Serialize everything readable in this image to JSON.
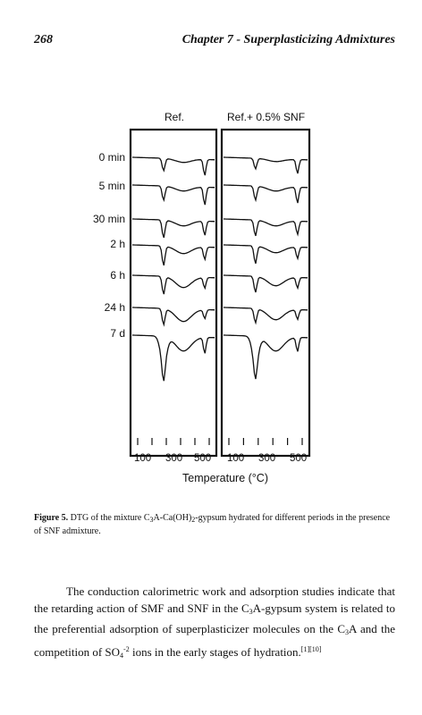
{
  "running_head": {
    "page_number": "268",
    "chapter_title": "Chapter 7 - Superplasticizing Admixtures"
  },
  "figure": {
    "panels": [
      {
        "label": "Ref."
      },
      {
        "label": "Ref.+ 0.5% SNF"
      }
    ],
    "row_labels": [
      "0 min",
      "5 min",
      "30 min",
      "2 h",
      "6 h",
      "24 h",
      "7 d"
    ],
    "x_tick_labels_left": [
      "100",
      "300",
      "500"
    ],
    "x_tick_labels_right": [
      "100",
      "300",
      "500"
    ],
    "x_axis_title": "Temperature (°C)"
  },
  "caption": {
    "label": "Figure 5.",
    "text_1": " DTG of the mixture C",
    "sub_1": "3",
    "text_2": "A-Ca(OH)",
    "sub_2": "2",
    "text_3": "-gypsum hydrated for different periods in the presence of SNF admixture."
  },
  "body": {
    "t1": "The conduction calorimetric work and adsorption studies indicate that the retarding action of SMF and SNF in the C",
    "s1": "3",
    "t2": "A-gypsum system is related to the preferential adsorption of superplasticizer molecules on the C",
    "s2": "3",
    "t3": "A and the competition of SO",
    "s3": "4",
    "sup1": "-2",
    "t4": " ions in the early stages of hydration.",
    "sup2": "[1][10]"
  }
}
